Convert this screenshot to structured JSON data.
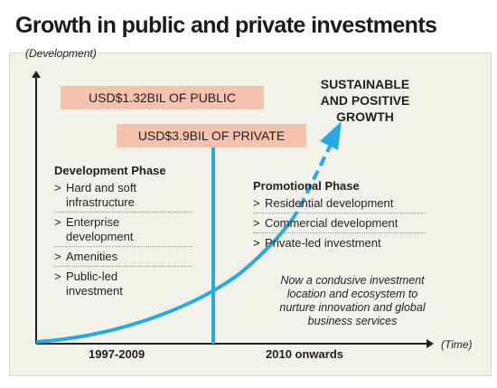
{
  "title": "Growth in public and private investments",
  "axes": {
    "y_label": "(Development)",
    "x_label": "(Time)"
  },
  "investments": {
    "public": "USD$1.32BIL OF PUBLIC",
    "private": "USD$3.9BIL OF PRIVATE"
  },
  "growth_label": {
    "line1": "SUSTAINABLE",
    "line2": "AND POSITIVE",
    "line3": "GROWTH"
  },
  "development_phase": {
    "heading": "Development Phase",
    "items": [
      {
        "line1": "Hard and soft",
        "line2": "infrastructure"
      },
      {
        "line1": "Enterprise",
        "line2": "development"
      },
      {
        "line1": "Amenities",
        "line2": ""
      },
      {
        "line1": "Public-led",
        "line2": "investment"
      }
    ]
  },
  "promotional_phase": {
    "heading": "Promotional Phase",
    "items": [
      "Residential development",
      "Commercial development",
      "Private-led investment"
    ]
  },
  "note": {
    "line1": "Now a condusive investment",
    "line2": "location and ecosystem to",
    "line3": "nurture innovation and global",
    "line4": "business services"
  },
  "periods": [
    "1997-2009",
    "2010 onwards"
  ],
  "bullet_marker": ">",
  "colors": {
    "growth_curve": "#27a9e1",
    "pill": "#f5c3ad",
    "axis": "#231f20",
    "background": "#f2f1ea"
  }
}
